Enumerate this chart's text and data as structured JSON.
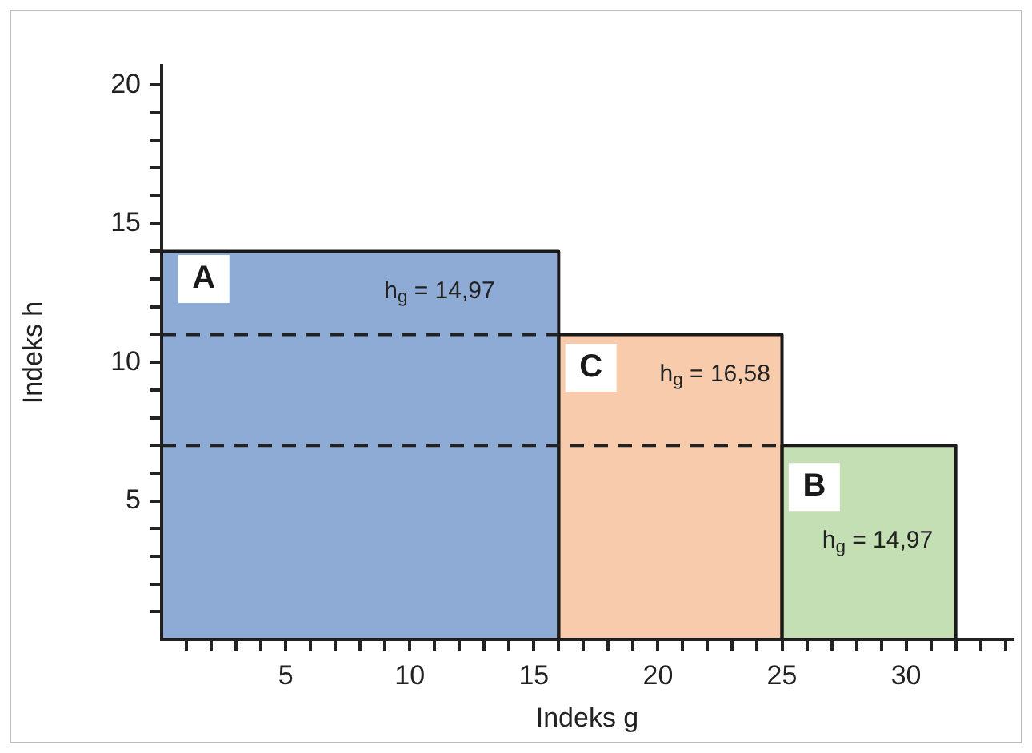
{
  "chart_data": {
    "type": "histogram",
    "xlabel": "Indeks g",
    "ylabel": "Indeks h",
    "bins": [
      0,
      16,
      25,
      32
    ],
    "values": [
      14,
      11,
      7
    ],
    "colors": [
      "#8eabd6",
      "#f7cbab",
      "#c5dfb5"
    ],
    "xlim": [
      0,
      34.3
    ],
    "ylim": [
      0,
      20.7
    ],
    "xticks": [
      {
        "value": 1,
        "label": null
      },
      {
        "value": 2,
        "label": null
      },
      {
        "value": 3,
        "label": null
      },
      {
        "value": 4,
        "label": null
      },
      5,
      {
        "value": 6,
        "label": null
      },
      {
        "value": 7,
        "label": null
      },
      {
        "value": 8,
        "label": null
      },
      {
        "value": 9,
        "label": null
      },
      10,
      {
        "value": 11,
        "label": null
      },
      {
        "value": 12,
        "label": null
      },
      {
        "value": 13,
        "label": null
      },
      {
        "value": 14,
        "label": null
      },
      15,
      {
        "value": 16,
        "label": null
      },
      {
        "value": 17,
        "label": null
      },
      {
        "value": 18,
        "label": null
      },
      {
        "value": 19,
        "label": null
      },
      20,
      {
        "value": 21,
        "label": null
      },
      {
        "value": 22,
        "label": null
      },
      {
        "value": 23,
        "label": null
      },
      {
        "value": 24,
        "label": null
      },
      25,
      {
        "value": 26,
        "label": null
      },
      {
        "value": 27,
        "label": null
      },
      {
        "value": 28,
        "label": null
      },
      {
        "value": 29,
        "label": null
      },
      30,
      {
        "value": 31,
        "label": null
      },
      {
        "value": 32,
        "label": null
      },
      {
        "value": 33,
        "label": null
      },
      {
        "value": 34,
        "label": null
      }
    ],
    "yticks": [
      {
        "value": 1,
        "label": null
      },
      {
        "value": 2,
        "label": null
      },
      {
        "value": 3,
        "label": null
      },
      {
        "value": 4,
        "label": null
      },
      5,
      {
        "value": 6,
        "label": null
      },
      {
        "value": 7,
        "label": null
      },
      {
        "value": 8,
        "label": null
      },
      {
        "value": 9,
        "label": null
      },
      10,
      {
        "value": 11,
        "label": null
      },
      {
        "value": 12,
        "label": null
      },
      {
        "value": 13,
        "label": null
      },
      {
        "value": 14,
        "label": null
      },
      15,
      {
        "value": 16,
        "label": null
      },
      {
        "value": 17,
        "label": null
      },
      {
        "value": 18,
        "label": null
      },
      {
        "value": 19,
        "label": null
      },
      20
    ],
    "ref_lines": [
      {
        "axis": "y",
        "value": 11,
        "color": "#222222",
        "line_style": "dashed"
      },
      {
        "axis": "y",
        "value": 7,
        "color": "#222222",
        "line_style": "dashed"
      }
    ],
    "annotations": [
      {
        "text": "A",
        "x": 1.7,
        "y": 13
      },
      "h$_{g}$ = 14,97",
      {
        "text": "C",
        "x": 17.3,
        "y": 9.8
      },
      "h$_{g}$ = 16,58",
      {
        "text": "B",
        "x": 26.3,
        "y": 5.5
      },
      "h$_{g}$ = 14,97"
    ],
    "grid": false,
    "legend": false
  }
}
